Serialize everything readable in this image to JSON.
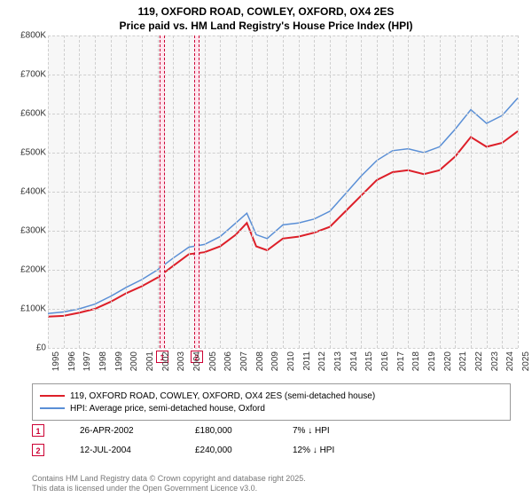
{
  "title_line1": "119, OXFORD ROAD, COWLEY, OXFORD, OX4 2ES",
  "title_line2": "Price paid vs. HM Land Registry's House Price Index (HPI)",
  "chart": {
    "plot_bg": "#f7f7f7",
    "grid_color": "#cfcfcf",
    "x_start": 1995,
    "x_end": 2025,
    "x_tick_step": 1,
    "y_min": 0,
    "y_max": 800000,
    "y_tick_step": 100000,
    "y_prefix": "£",
    "y_suffix": "K",
    "series": [
      {
        "name": "119, OXFORD ROAD, COWLEY, OXFORD, OX4 2ES (semi-detached house)",
        "color": "#dd1f29",
        "width": 2,
        "data": [
          [
            1995,
            80000
          ],
          [
            1996,
            82000
          ],
          [
            1997,
            90000
          ],
          [
            1998,
            100000
          ],
          [
            1999,
            118000
          ],
          [
            2000,
            140000
          ],
          [
            2001,
            158000
          ],
          [
            2002,
            180000
          ],
          [
            2003,
            210000
          ],
          [
            2004,
            240000
          ],
          [
            2005,
            245000
          ],
          [
            2006,
            260000
          ],
          [
            2007,
            290000
          ],
          [
            2007.7,
            320000
          ],
          [
            2008.3,
            260000
          ],
          [
            2009,
            250000
          ],
          [
            2010,
            280000
          ],
          [
            2011,
            285000
          ],
          [
            2012,
            295000
          ],
          [
            2013,
            310000
          ],
          [
            2014,
            350000
          ],
          [
            2015,
            390000
          ],
          [
            2016,
            430000
          ],
          [
            2017,
            450000
          ],
          [
            2018,
            455000
          ],
          [
            2019,
            445000
          ],
          [
            2020,
            455000
          ],
          [
            2021,
            490000
          ],
          [
            2022,
            540000
          ],
          [
            2023,
            515000
          ],
          [
            2024,
            525000
          ],
          [
            2025,
            555000
          ]
        ]
      },
      {
        "name": "HPI: Average price, semi-detached house, Oxford",
        "color": "#5a8fd6",
        "width": 1.5,
        "data": [
          [
            1995,
            88000
          ],
          [
            1996,
            92000
          ],
          [
            1997,
            100000
          ],
          [
            1998,
            112000
          ],
          [
            1999,
            132000
          ],
          [
            2000,
            155000
          ],
          [
            2001,
            175000
          ],
          [
            2002,
            200000
          ],
          [
            2003,
            230000
          ],
          [
            2004,
            258000
          ],
          [
            2005,
            265000
          ],
          [
            2006,
            285000
          ],
          [
            2007,
            320000
          ],
          [
            2007.7,
            345000
          ],
          [
            2008.3,
            290000
          ],
          [
            2009,
            280000
          ],
          [
            2010,
            315000
          ],
          [
            2011,
            320000
          ],
          [
            2012,
            330000
          ],
          [
            2013,
            350000
          ],
          [
            2014,
            395000
          ],
          [
            2015,
            440000
          ],
          [
            2016,
            480000
          ],
          [
            2017,
            505000
          ],
          [
            2018,
            510000
          ],
          [
            2019,
            500000
          ],
          [
            2020,
            515000
          ],
          [
            2021,
            560000
          ],
          [
            2022,
            610000
          ],
          [
            2023,
            575000
          ],
          [
            2024,
            595000
          ],
          [
            2025,
            640000
          ]
        ]
      }
    ],
    "sale_markers": [
      {
        "n": "1",
        "year": 2002.3,
        "price": 180000
      },
      {
        "n": "2",
        "year": 2004.5,
        "price": 240000
      }
    ],
    "marker_band_color": "#ffe6ef",
    "marker_border_color": "#cc0033",
    "marker_dot_color": "#cc0033"
  },
  "sales_rows": [
    {
      "n": "1",
      "date": "26-APR-2002",
      "price": "£180,000",
      "delta": "7% ↓ HPI"
    },
    {
      "n": "2",
      "date": "12-JUL-2004",
      "price": "£240,000",
      "delta": "12% ↓ HPI"
    }
  ],
  "footer1": "Contains HM Land Registry data © Crown copyright and database right 2025.",
  "footer2": "This data is licensed under the Open Government Licence v3.0."
}
